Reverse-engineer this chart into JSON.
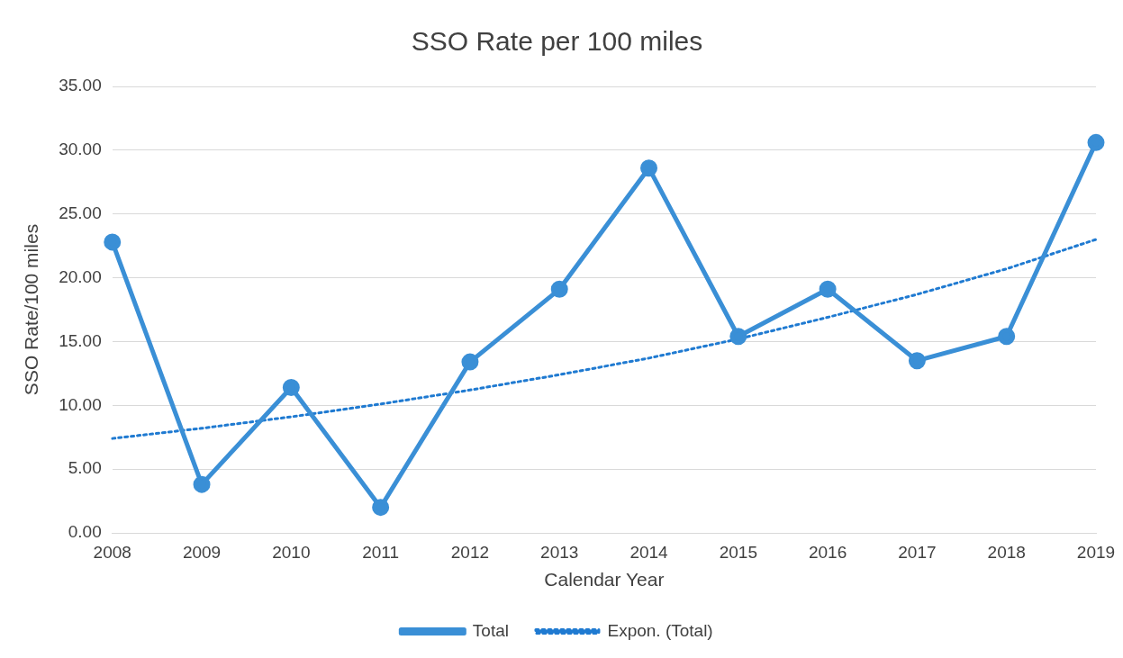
{
  "chart_data": {
    "type": "line",
    "title": "SSO Rate per 100 miles",
    "xlabel": "Calendar Year",
    "ylabel": "SSO Rate/100 miles",
    "categories": [
      "2008",
      "2009",
      "2010",
      "2011",
      "2012",
      "2013",
      "2014",
      "2015",
      "2016",
      "2017",
      "2018",
      "2019"
    ],
    "series": [
      {
        "name": "Total",
        "color": "#3a8fd6",
        "marker": "circle",
        "line_style": "solid",
        "values": [
          22.8,
          3.8,
          11.4,
          2.0,
          13.4,
          19.1,
          28.6,
          15.4,
          19.1,
          13.5,
          15.4,
          30.6
        ]
      },
      {
        "name": "Expon. (Total)",
        "color": "#1f7ad1",
        "marker": "none",
        "line_style": "dotted",
        "values": [
          7.4,
          8.2,
          9.1,
          10.1,
          11.2,
          12.4,
          13.7,
          15.2,
          16.9,
          18.7,
          20.7,
          23.0
        ]
      }
    ],
    "ylim": [
      0,
      35
    ],
    "yticks": [
      {
        "value": 0,
        "label": "0.00"
      },
      {
        "value": 5,
        "label": "5.00"
      },
      {
        "value": 10,
        "label": "10.00"
      },
      {
        "value": 15,
        "label": "15.00"
      },
      {
        "value": 20,
        "label": "20.00"
      },
      {
        "value": 25,
        "label": "25.00"
      },
      {
        "value": 30,
        "label": "30.00"
      },
      {
        "value": 35,
        "label": "35.00"
      }
    ],
    "grid": "y",
    "legend": "bottom"
  }
}
